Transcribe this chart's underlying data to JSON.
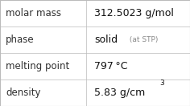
{
  "rows": [
    {
      "label": "molar mass",
      "value": "312.5023 g/mol",
      "type": "plain"
    },
    {
      "label": "phase",
      "value": "solid",
      "suffix": " (at STP)",
      "type": "suffix"
    },
    {
      "label": "melting point",
      "value": "797 °C",
      "type": "plain"
    },
    {
      "label": "density",
      "value": "5.83 g/cm",
      "superscript": "3",
      "type": "super"
    }
  ],
  "n_rows": 4,
  "col_split": 0.455,
  "bg_color": "#ffffff",
  "border_color": "#bbbbbb",
  "label_color": "#303030",
  "value_color": "#111111",
  "suffix_color": "#888888",
  "label_fontsize": 8.5,
  "value_fontsize": 9.0,
  "suffix_fontsize": 6.5,
  "super_fontsize": 6.5
}
